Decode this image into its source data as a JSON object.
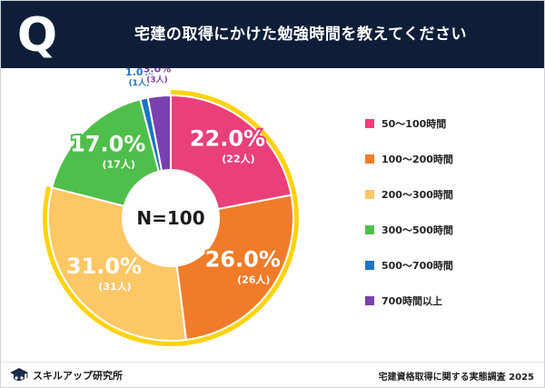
{
  "header": {
    "q_mark": "Q",
    "title": "宅建の取得にかけた勉強時間を教えてください"
  },
  "chart_data": {
    "type": "pie",
    "variant": "donut",
    "center_label": "N=100",
    "categories": [
      "50〜100時間",
      "100〜200時間",
      "200〜300時間",
      "300〜500時間",
      "500〜700時間",
      "700時間以上"
    ],
    "values": [
      22.0,
      26.0,
      31.0,
      17.0,
      1.0,
      3.0
    ],
    "value_labels": [
      "22.0%",
      "26.0%",
      "31.0%",
      "17.0%",
      "1.0%",
      "3.0%"
    ],
    "count_labels": [
      "(22人)",
      "(26人)",
      "(31人)",
      "(17人)",
      "(1人)",
      "(3人)"
    ],
    "colors": [
      "#e9407b",
      "#f07c2a",
      "#fcc765",
      "#4fbf4b",
      "#1c74c4",
      "#7a3fb0"
    ],
    "highlight_ring_color": "#ffd30f",
    "legend_placement": "right"
  },
  "footer": {
    "logo_text": "スキルアップ研究所",
    "source": "宅建資格取得に関する実態調査 2025"
  }
}
